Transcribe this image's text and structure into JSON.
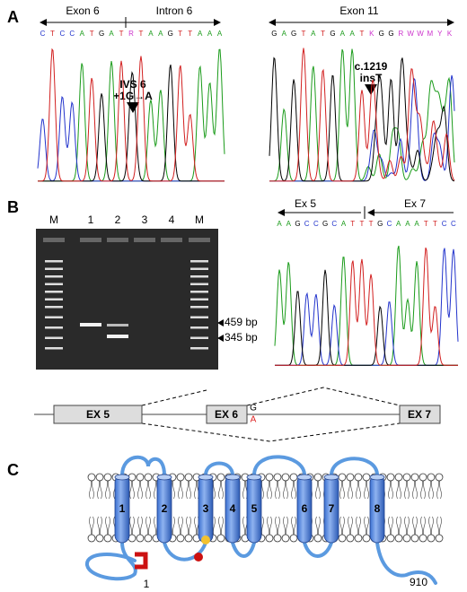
{
  "panel_a": {
    "label": "A",
    "left": {
      "exon": "Exon 6",
      "intron": "Intron 6",
      "sequence": [
        "C",
        "T",
        "C",
        "C",
        "A",
        "T",
        "G",
        "A",
        "T",
        "R",
        "T",
        "A",
        "A",
        "G",
        "T",
        "T",
        "A",
        "A",
        "A"
      ],
      "annotation": [
        "IVS 6",
        "+1G→A"
      ]
    },
    "right": {
      "exon": "Exon 11",
      "sequence": [
        "G",
        "A",
        "G",
        "T",
        "A",
        "T",
        "G",
        "A",
        "A",
        "T",
        "K",
        "G",
        "G",
        "R",
        "W",
        "W",
        "M",
        "Y",
        "K"
      ],
      "annotation": [
        "c.1219",
        "insT"
      ]
    }
  },
  "panel_b": {
    "label": "B",
    "gel": {
      "lanes": [
        "M",
        "1",
        "2",
        "3",
        "4",
        "M"
      ],
      "markers": [
        "459 bp",
        "345 bp"
      ]
    },
    "chromatogram": {
      "exon_left": "Ex 5",
      "exon_right": "Ex 7",
      "sequence": [
        "A",
        "A",
        "G",
        "C",
        "C",
        "G",
        "C",
        "A",
        "T",
        "T",
        "T",
        "G",
        "C",
        "A",
        "A",
        "A",
        "T",
        "T",
        "C",
        "C"
      ]
    },
    "gene": {
      "exons": [
        "EX 5",
        "EX 6",
        "EX 7"
      ],
      "wild_type": "G",
      "mutant": "A"
    }
  },
  "panel_c": {
    "label": "C",
    "helices": [
      "1",
      "2",
      "3",
      "4",
      "5",
      "6",
      "7",
      "8"
    ],
    "n_terminus": "1",
    "c_terminus": "910"
  }
}
